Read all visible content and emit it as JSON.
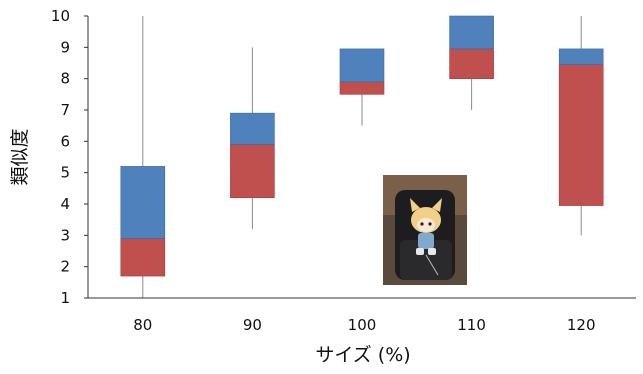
{
  "chart_data": {
    "type": "box",
    "ylabel": "類似度",
    "xlabel": "サイズ (%)",
    "categories": [
      "80",
      "90",
      "100",
      "110",
      "120"
    ],
    "ylim": [
      1,
      10
    ],
    "yticks": [
      "1",
      "2",
      "3",
      "4",
      "5",
      "6",
      "7",
      "8",
      "9",
      "10"
    ],
    "grid": false,
    "series": [
      {
        "values": [
          {
            "min": 1,
            "q1": 1.7,
            "median": 2.9,
            "q3": 5.2,
            "max": 10
          },
          {
            "min": 3.2,
            "q1": 4.2,
            "median": 5.9,
            "q3": 6.9,
            "max": 9
          },
          {
            "min": 6.5,
            "q1": 7.5,
            "median": 7.9,
            "q3": 8.95,
            "max": 8.95
          },
          {
            "min": 7,
            "q1": 8,
            "median": 8.95,
            "q3": 10,
            "max": 10
          },
          {
            "min": 3,
            "q1": 3.95,
            "median": 8.45,
            "q3": 8.95,
            "max": 10
          }
        ]
      }
    ],
    "colors": {
      "lower_box": "#c0504d",
      "upper_box": "#4f81bd",
      "whisker": "#8a8a8a",
      "axis": "#333333"
    },
    "inset_image": "photo of a plush doll figure sitting in a black office chair"
  }
}
